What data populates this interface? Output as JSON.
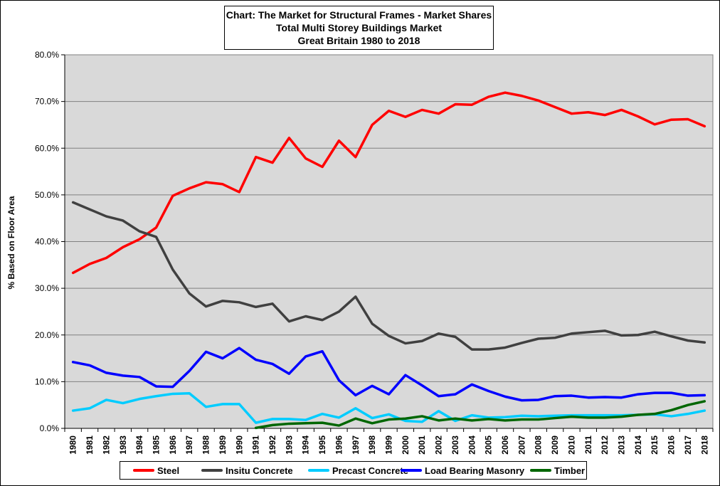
{
  "chart_data": {
    "type": "line",
    "title_lines": [
      "Chart: The Market for Structural Frames - Market Shares",
      "Total Multi Storey Buildings Market",
      "Great Britain 1980 to 2018"
    ],
    "xlabel": "",
    "ylabel": "% Based on Floor Area",
    "ylim": [
      0,
      80
    ],
    "yticks": [
      "0.0%",
      "10.0%",
      "20.0%",
      "30.0%",
      "40.0%",
      "50.0%",
      "60.0%",
      "70.0%",
      "80.0%"
    ],
    "grid": "horizontal",
    "legend_position": "bottom",
    "background_color": "#d9d9d9",
    "categories": [
      "1980",
      "1981",
      "1982",
      "1983",
      "1984",
      "1985",
      "1986",
      "1987",
      "1988",
      "1989",
      "1990",
      "1991",
      "1992",
      "1993",
      "1994",
      "1995",
      "1996",
      "1997",
      "1998",
      "1999",
      "2000",
      "2001",
      "2002",
      "2003",
      "2004",
      "2005",
      "2006",
      "2007",
      "2008",
      "2009",
      "2010",
      "2011",
      "2012",
      "2013",
      "2014",
      "2015",
      "2016",
      "2017",
      "2018"
    ],
    "series": [
      {
        "name": "Steel",
        "color": "#ff0000",
        "values": [
          33.3,
          35.2,
          36.5,
          38.8,
          40.5,
          43.0,
          49.8,
          51.4,
          52.7,
          52.3,
          50.6,
          58.1,
          56.9,
          62.2,
          57.8,
          56.0,
          61.6,
          58.1,
          65.0,
          68.0,
          66.7,
          68.2,
          67.4,
          69.4,
          69.3,
          71.0,
          71.9,
          71.2,
          70.2,
          68.8,
          67.4,
          67.7,
          67.1,
          68.2,
          66.8,
          65.1,
          66.1,
          66.2,
          64.7
        ]
      },
      {
        "name": "Insitu Concrete",
        "color": "#404040",
        "values": [
          48.4,
          46.9,
          45.4,
          44.5,
          42.2,
          41.0,
          34.0,
          28.9,
          26.1,
          27.3,
          27.0,
          26.0,
          26.7,
          22.9,
          24.0,
          23.2,
          25.0,
          28.2,
          22.4,
          19.8,
          18.2,
          18.7,
          20.3,
          19.6,
          16.9,
          16.9,
          17.3,
          18.3,
          19.2,
          19.4,
          20.3,
          20.6,
          20.9,
          19.9,
          20.0,
          20.7,
          19.7,
          18.8,
          18.4
        ]
      },
      {
        "name": "Precast Concrete",
        "color": "#00ccff",
        "values": [
          3.8,
          4.3,
          6.1,
          5.4,
          6.3,
          6.9,
          7.4,
          7.5,
          4.6,
          5.2,
          5.2,
          1.2,
          2.0,
          2.0,
          1.8,
          3.1,
          2.3,
          4.3,
          2.2,
          3.0,
          1.6,
          1.4,
          3.7,
          1.6,
          2.8,
          2.3,
          2.4,
          2.7,
          2.6,
          2.7,
          2.8,
          2.8,
          2.8,
          2.8,
          2.9,
          3.0,
          2.6,
          3.1,
          3.8
        ]
      },
      {
        "name": "Load Bearing Masonry",
        "color": "#0000ff",
        "values": [
          14.2,
          13.5,
          11.9,
          11.3,
          11.0,
          9.0,
          8.9,
          12.3,
          16.4,
          15.0,
          17.2,
          14.7,
          13.8,
          11.7,
          15.4,
          16.5,
          10.3,
          7.1,
          9.1,
          7.3,
          11.4,
          9.2,
          6.9,
          7.3,
          9.4,
          8.0,
          6.8,
          6.0,
          6.1,
          6.9,
          7.0,
          6.6,
          6.7,
          6.6,
          7.3,
          7.6,
          7.6,
          7.0,
          7.1
        ]
      },
      {
        "name": "Timber",
        "color": "#006600",
        "values": [
          null,
          null,
          null,
          null,
          null,
          null,
          null,
          null,
          null,
          null,
          null,
          0.1,
          0.7,
          1.0,
          1.1,
          1.2,
          0.6,
          2.1,
          1.1,
          1.9,
          2.1,
          2.6,
          1.7,
          2.1,
          1.7,
          2.0,
          1.7,
          1.9,
          1.9,
          2.2,
          2.5,
          2.3,
          2.3,
          2.5,
          2.9,
          3.1,
          3.9,
          5.0,
          5.8
        ]
      }
    ]
  }
}
